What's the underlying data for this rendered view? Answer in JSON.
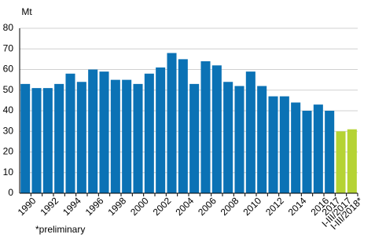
{
  "chart_data": {
    "type": "bar",
    "y_label": "Mt",
    "footnote": "*preliminary",
    "categories": [
      "1990",
      null,
      "1992",
      null,
      "1994",
      null,
      "1996",
      null,
      "1998",
      null,
      "2000",
      null,
      "2002",
      null,
      "2004",
      null,
      "2006",
      null,
      "2008",
      null,
      "2010",
      null,
      "2012",
      null,
      "2014",
      null,
      "2016",
      "2017",
      "I-III/2017",
      "I-III/2018*"
    ],
    "values": [
      53,
      51,
      51,
      53,
      58,
      54,
      60,
      59,
      55,
      55,
      53,
      58,
      61,
      68,
      65,
      53,
      64,
      62,
      54,
      52,
      59,
      52,
      47,
      47,
      44,
      40,
      43,
      40,
      30,
      31
    ],
    "colors": [
      "#0b72b5",
      "#0b72b5",
      "#0b72b5",
      "#0b72b5",
      "#0b72b5",
      "#0b72b5",
      "#0b72b5",
      "#0b72b5",
      "#0b72b5",
      "#0b72b5",
      "#0b72b5",
      "#0b72b5",
      "#0b72b5",
      "#0b72b5",
      "#0b72b5",
      "#0b72b5",
      "#0b72b5",
      "#0b72b5",
      "#0b72b5",
      "#0b72b5",
      "#0b72b5",
      "#0b72b5",
      "#0b72b5",
      "#0b72b5",
      "#0b72b5",
      "#0b72b5",
      "#0b72b5",
      "#0b72b5",
      "#b5d334",
      "#b5d334"
    ],
    "ylim": [
      0,
      80
    ],
    "yticks": [
      0,
      10,
      20,
      30,
      40,
      50,
      60,
      70,
      80
    ],
    "grid": true
  }
}
